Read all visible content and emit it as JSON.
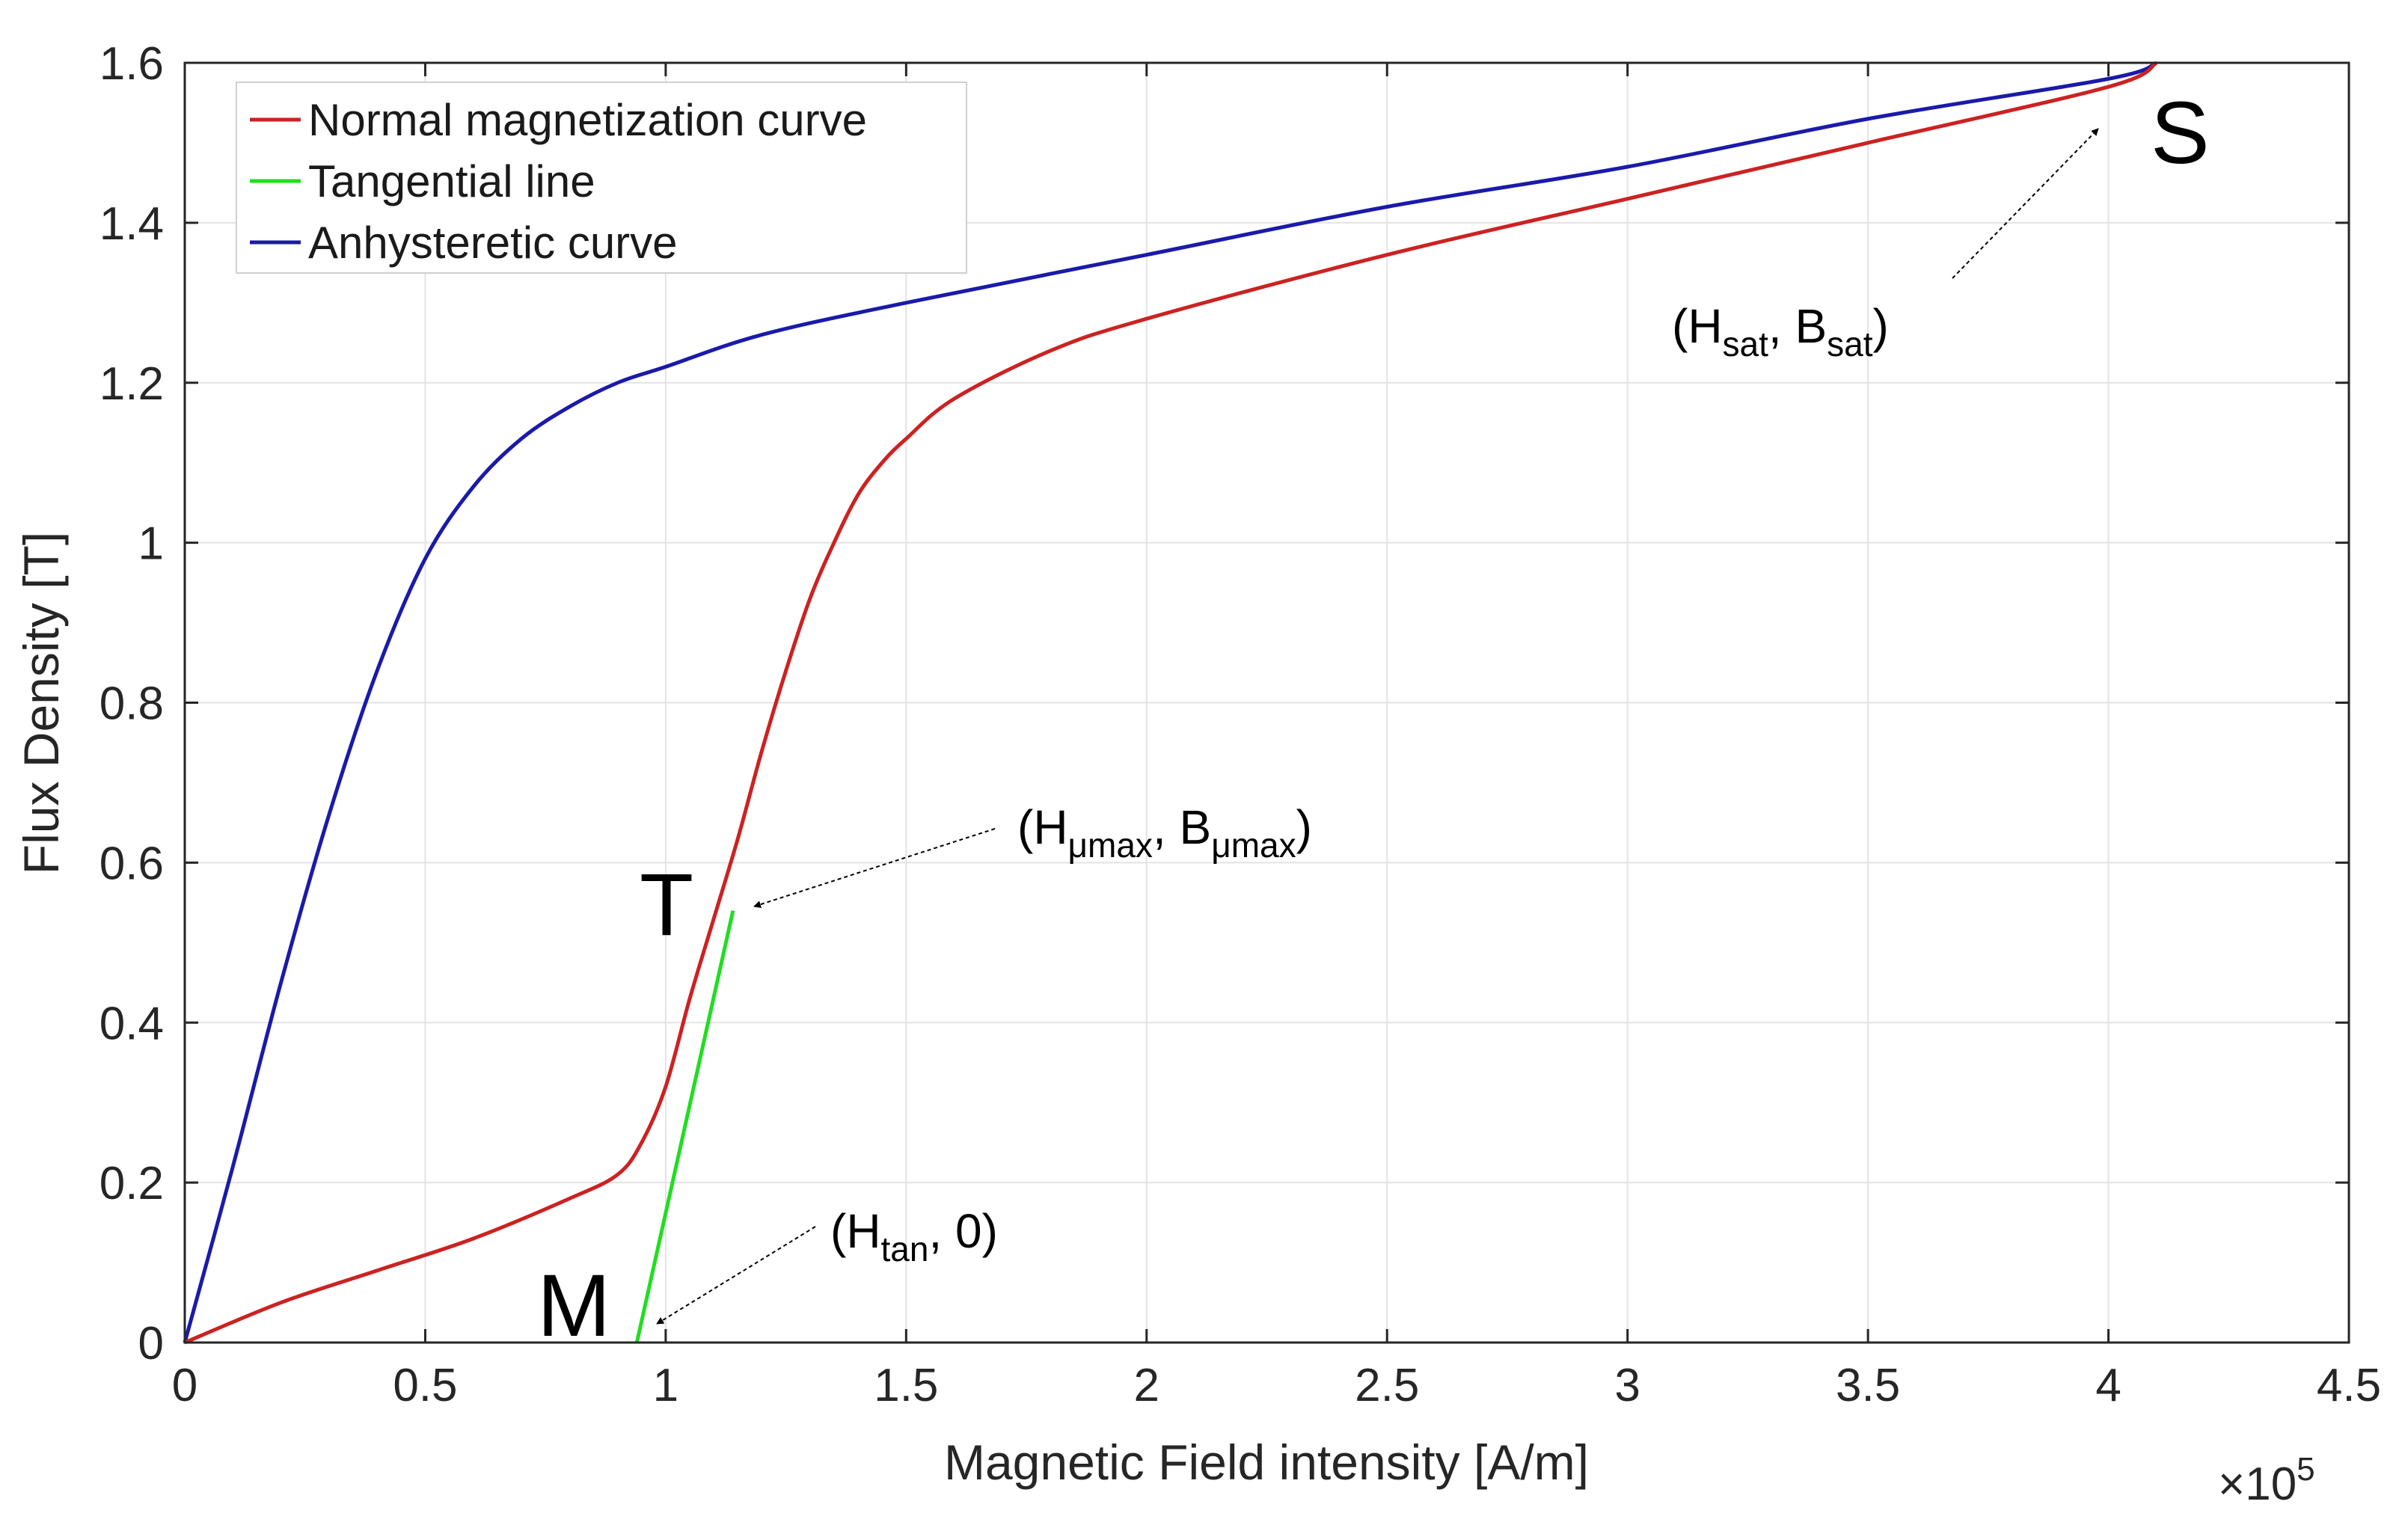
{
  "chart_data": {
    "type": "line",
    "xlabel": "Magnetic Field intensity [A/m]",
    "ylabel": "Flux Density [T]",
    "x_exponent_label": "×10",
    "x_exponent_power": "5",
    "xlim": [
      0,
      4.5
    ],
    "ylim": [
      0,
      1.6
    ],
    "x_ticks": [
      0,
      0.5,
      1,
      1.5,
      2,
      2.5,
      3,
      3.5,
      4,
      4.5
    ],
    "x_tick_labels": [
      "0",
      "0.5",
      "1",
      "1.5",
      "2",
      "2.5",
      "3",
      "3.5",
      "4",
      "4.5"
    ],
    "y_ticks": [
      0,
      0.2,
      0.4,
      0.6,
      0.8,
      1,
      1.2,
      1.4,
      1.6
    ],
    "y_tick_labels": [
      "0",
      "0.2",
      "0.4",
      "0.6",
      "0.8",
      "1",
      "1.2",
      "1.4",
      "1.6"
    ],
    "grid": true,
    "legend_position": "top-left",
    "series": [
      {
        "name": "Normal magnetization curve",
        "color": "#cc2222",
        "x": [
          0,
          0.2,
          0.4,
          0.6,
          0.8,
          0.9,
          0.95,
          1.0,
          1.05,
          1.1,
          1.15,
          1.2,
          1.25,
          1.3,
          1.35,
          1.4,
          1.45,
          1.5,
          1.6,
          1.8,
          2.0,
          2.5,
          3.0,
          3.5,
          4.0,
          4.1
        ],
        "y": [
          0,
          0.05,
          0.09,
          0.13,
          0.18,
          0.21,
          0.25,
          0.32,
          0.43,
          0.53,
          0.63,
          0.74,
          0.84,
          0.93,
          1.0,
          1.06,
          1.1,
          1.13,
          1.18,
          1.24,
          1.28,
          1.36,
          1.43,
          1.5,
          1.57,
          1.6
        ]
      },
      {
        "name": "Tangential line",
        "color": "#22dd22",
        "x": [
          0.94,
          1.14
        ],
        "y": [
          0,
          0.54
        ]
      },
      {
        "name": "Anhysteretic curve",
        "color": "#1a1aaa",
        "x": [
          0,
          0.1,
          0.2,
          0.3,
          0.4,
          0.5,
          0.6,
          0.7,
          0.8,
          0.9,
          1.0,
          1.2,
          1.5,
          2.0,
          2.5,
          3.0,
          3.5,
          4.0,
          4.1
        ],
        "y": [
          0,
          0.22,
          0.45,
          0.66,
          0.84,
          0.98,
          1.07,
          1.13,
          1.17,
          1.2,
          1.22,
          1.26,
          1.3,
          1.36,
          1.42,
          1.47,
          1.53,
          1.58,
          1.6
        ]
      }
    ],
    "annotations": {
      "S": {
        "letter": "S",
        "label_open": "(H",
        "sub1": "sat",
        "label_mid": ", B",
        "sub2": "sat",
        "label_close": ")",
        "x": 4.1,
        "y": 1.6
      },
      "T": {
        "letter": "T",
        "label_open": "(H",
        "sub1": "μmax",
        "label_mid": ", B",
        "sub2": "μmax",
        "label_close": ")",
        "x": 1.14,
        "y": 0.54
      },
      "M": {
        "letter": "M",
        "label_open": "(H",
        "sub1": "tan",
        "label_mid": ", 0)",
        "sub2": "",
        "label_close": "",
        "x": 0.94,
        "y": 0
      }
    }
  }
}
